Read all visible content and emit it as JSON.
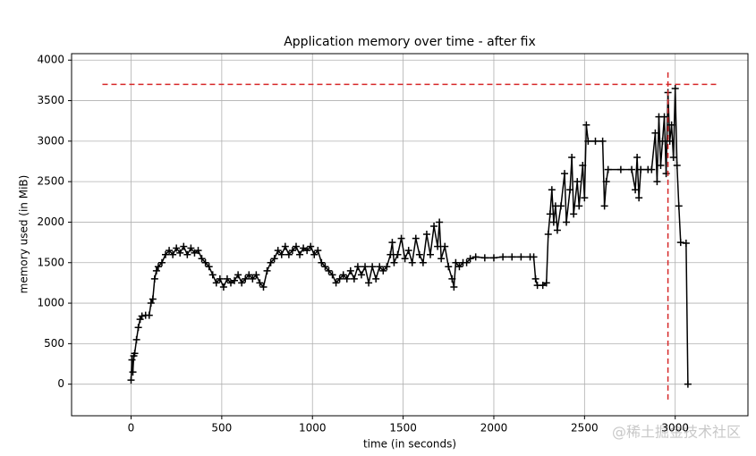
{
  "chart_data": {
    "type": "line",
    "title": "Application memory over time - after fix",
    "xlabel": "time (in seconds)",
    "ylabel": "memory used (in MiB)",
    "watermark": "@稀土掘金技术社区",
    "xlim": [
      -328,
      3401
    ],
    "ylim": [
      -390,
      4080
    ],
    "xticks": [
      0,
      500,
      1000,
      1500,
      2000,
      2500,
      3000
    ],
    "yticks": [
      0,
      500,
      1000,
      1500,
      2000,
      2500,
      3000,
      3500,
      4000
    ],
    "grid": true,
    "series": [
      {
        "color": "#000000",
        "marker": "+",
        "x": [
          0,
          5,
          10,
          15,
          20,
          30,
          40,
          50,
          60,
          80,
          100,
          110,
          120,
          130,
          140,
          150,
          170,
          190,
          210,
          230,
          250,
          270,
          290,
          310,
          330,
          350,
          370,
          390,
          410,
          430,
          450,
          470,
          490,
          510,
          530,
          550,
          570,
          590,
          610,
          630,
          650,
          670,
          690,
          710,
          730,
          750,
          770,
          790,
          810,
          830,
          850,
          870,
          890,
          910,
          930,
          950,
          970,
          990,
          1010,
          1030,
          1050,
          1070,
          1090,
          1110,
          1130,
          1150,
          1170,
          1190,
          1210,
          1230,
          1250,
          1270,
          1290,
          1310,
          1330,
          1350,
          1370,
          1390,
          1410,
          1430,
          1440,
          1450,
          1470,
          1490,
          1510,
          1530,
          1550,
          1570,
          1590,
          1610,
          1630,
          1650,
          1670,
          1690,
          1700,
          1710,
          1730,
          1750,
          1770,
          1780,
          1790,
          1810,
          1830,
          1850,
          1870,
          1900,
          1950,
          2000,
          2050,
          2100,
          2150,
          2200,
          2220,
          2230,
          2240,
          2270,
          2290,
          2300,
          2310,
          2320,
          2330,
          2340,
          2350,
          2370,
          2390,
          2400,
          2420,
          2430,
          2440,
          2460,
          2470,
          2490,
          2500,
          2510,
          2520,
          2560,
          2600,
          2610,
          2620,
          2630,
          2700,
          2760,
          2780,
          2790,
          2800,
          2810,
          2850,
          2870,
          2890,
          2900,
          2910,
          2920,
          2930,
          2940,
          2950,
          2960,
          2970,
          2980,
          2990,
          3000,
          3010,
          3020,
          3030,
          3060,
          3070
        ],
        "values": [
          50,
          300,
          150,
          350,
          380,
          550,
          700,
          800,
          840,
          850,
          850,
          1000,
          1050,
          1300,
          1400,
          1450,
          1500,
          1600,
          1650,
          1600,
          1680,
          1620,
          1700,
          1600,
          1680,
          1620,
          1650,
          1550,
          1500,
          1450,
          1350,
          1250,
          1300,
          1200,
          1300,
          1250,
          1280,
          1350,
          1250,
          1300,
          1350,
          1300,
          1350,
          1250,
          1200,
          1400,
          1500,
          1550,
          1650,
          1600,
          1700,
          1600,
          1650,
          1700,
          1600,
          1680,
          1650,
          1700,
          1600,
          1650,
          1500,
          1450,
          1400,
          1350,
          1250,
          1300,
          1350,
          1300,
          1400,
          1300,
          1450,
          1350,
          1450,
          1250,
          1450,
          1300,
          1450,
          1400,
          1450,
          1600,
          1750,
          1500,
          1600,
          1800,
          1550,
          1650,
          1500,
          1800,
          1600,
          1500,
          1850,
          1600,
          1950,
          1700,
          2000,
          1550,
          1700,
          1450,
          1300,
          1200,
          1500,
          1450,
          1500,
          1500,
          1550,
          1570,
          1560,
          1560,
          1570,
          1570,
          1570,
          1570,
          1570,
          1300,
          1220,
          1220,
          1250,
          1850,
          2100,
          2400,
          2000,
          2200,
          1900,
          2200,
          2600,
          2000,
          2400,
          2800,
          2100,
          2500,
          2200,
          2700,
          2300,
          3200,
          3000,
          3000,
          3000,
          2200,
          2500,
          2650,
          2650,
          2650,
          2400,
          2800,
          2300,
          2650,
          2650,
          2650,
          3100,
          2500,
          3300,
          2700,
          3000,
          3300,
          2600,
          3600,
          3000,
          3200,
          2800,
          3650,
          2700,
          2200,
          1750,
          1740,
          0
        ]
      }
    ],
    "hline": {
      "y": 3700,
      "xmin": -158,
      "xmax": 3232,
      "color": "#d62728"
    },
    "vline": {
      "x": 2960,
      "ymin": -190,
      "ymax": 3880,
      "color": "#d62728"
    }
  }
}
